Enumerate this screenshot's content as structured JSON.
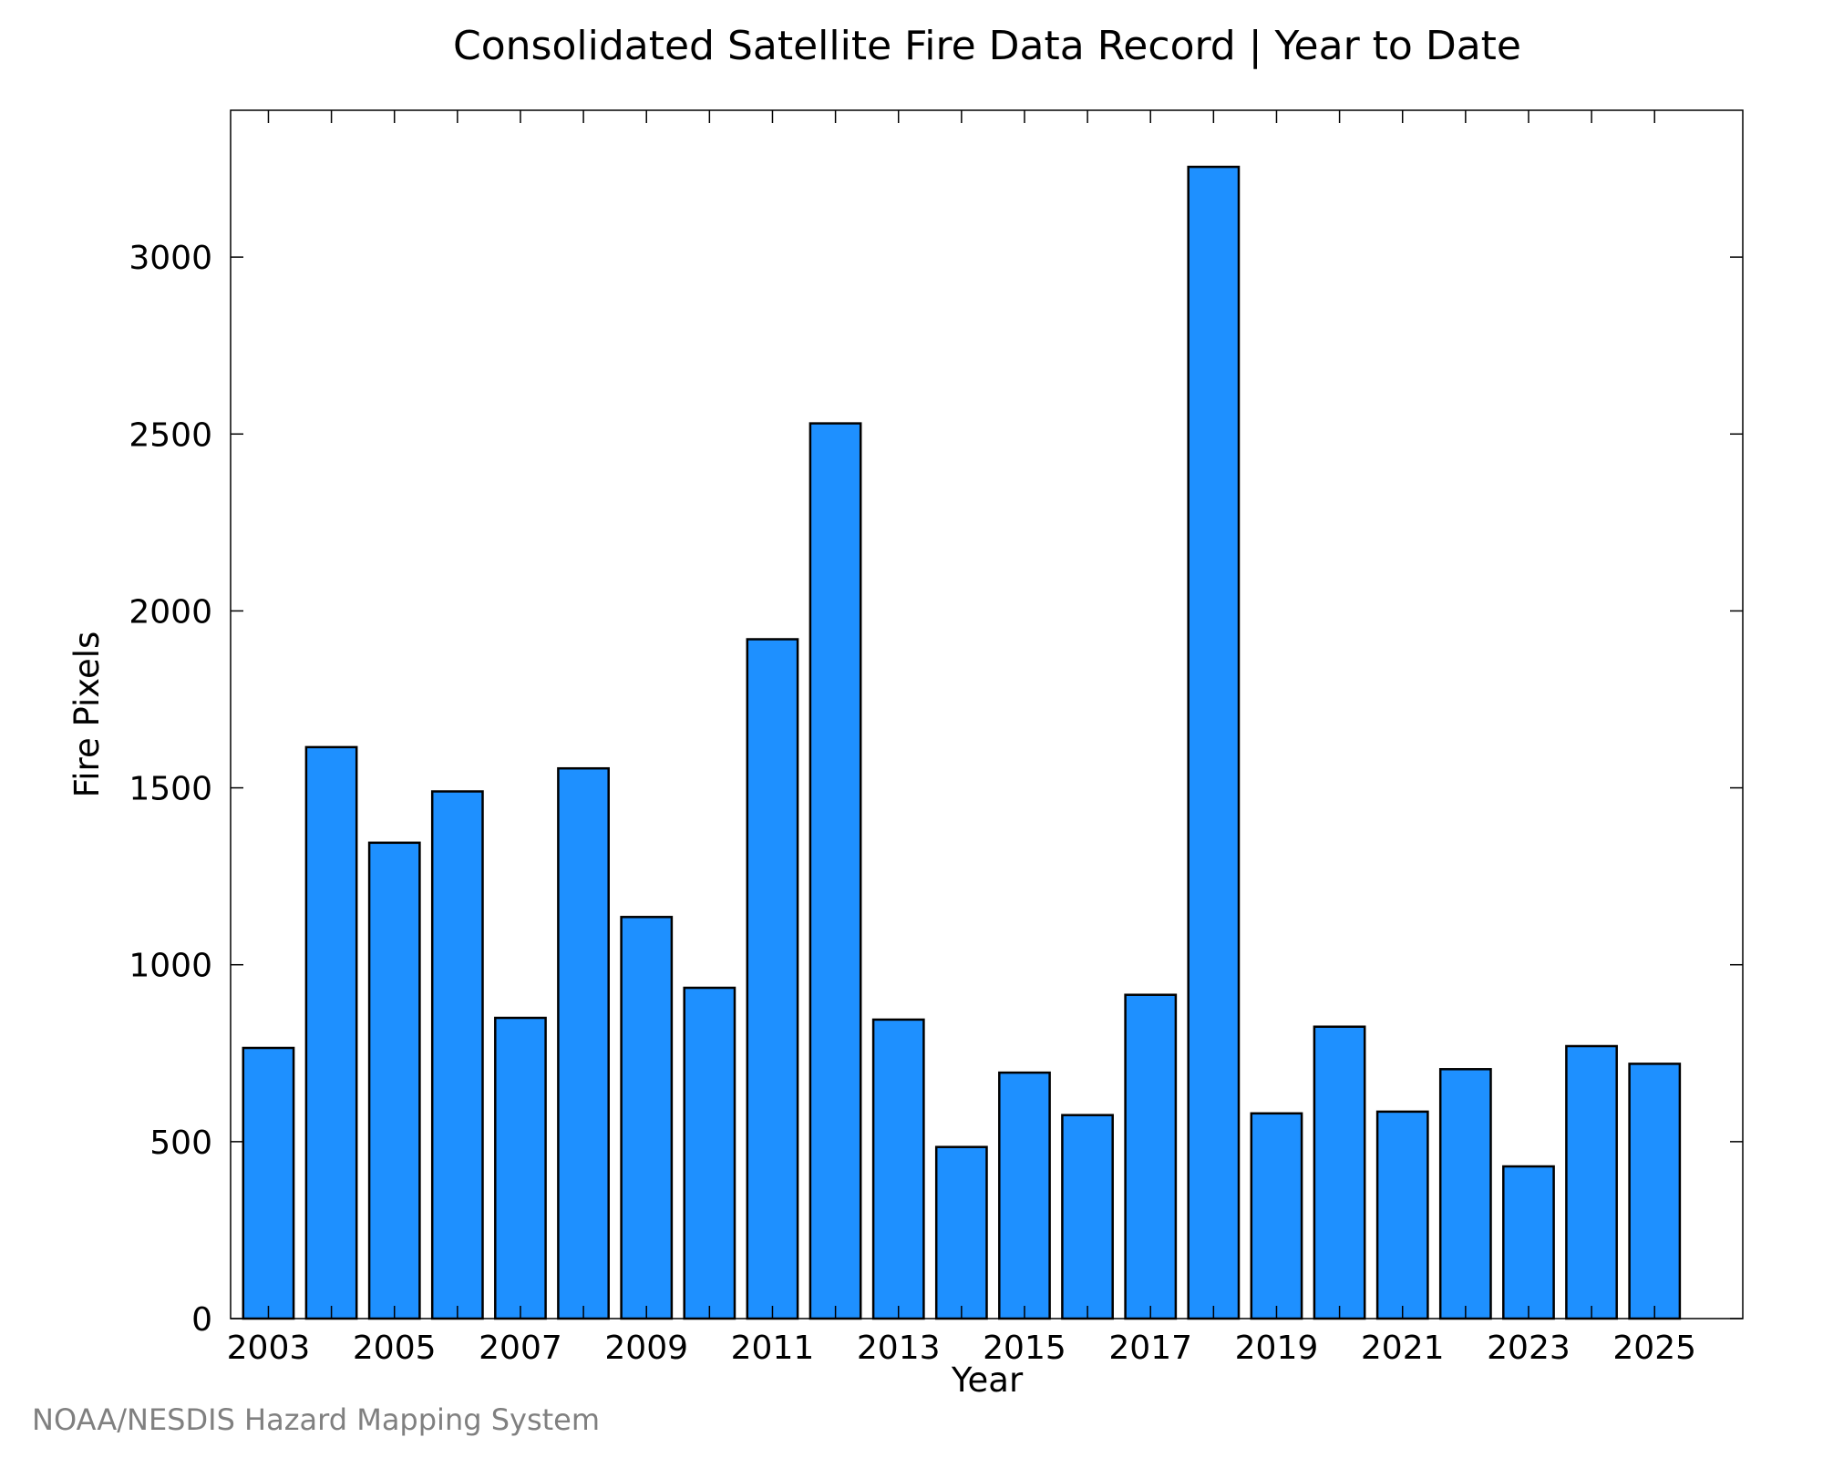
{
  "chart_data": {
    "type": "bar",
    "title": "Consolidated Satellite Fire Data Record | Year to Date",
    "xlabel": "Year",
    "ylabel": "Fire Pixels",
    "credit": "NOAA/NESDIS Hazard Mapping System",
    "categories": [
      2003,
      2004,
      2005,
      2006,
      2007,
      2008,
      2009,
      2010,
      2011,
      2012,
      2013,
      2014,
      2015,
      2016,
      2017,
      2018,
      2019,
      2020,
      2021,
      2022,
      2023,
      2024,
      2025
    ],
    "values": [
      765,
      1615,
      1345,
      1490,
      850,
      1555,
      1135,
      935,
      1920,
      2530,
      845,
      485,
      695,
      575,
      915,
      3255,
      580,
      825,
      585,
      705,
      430,
      770,
      720
    ],
    "x_tick_labels": [
      "2003",
      "2005",
      "2007",
      "2009",
      "2011",
      "2013",
      "2015",
      "2017",
      "2019",
      "2021",
      "2023",
      "2025"
    ],
    "y_ticks": [
      0,
      500,
      1000,
      1500,
      2000,
      2500,
      3000
    ],
    "y_tick_labels": [
      "0",
      "500",
      "1000",
      "1500",
      "2000",
      "2500",
      "3000"
    ],
    "ylim": [
      0,
      3415
    ],
    "xlim": [
      2002.4,
      2026.4
    ],
    "grid": false,
    "legend": "none",
    "bar_color": "#1e90ff",
    "bar_edge_color": "#000000"
  }
}
